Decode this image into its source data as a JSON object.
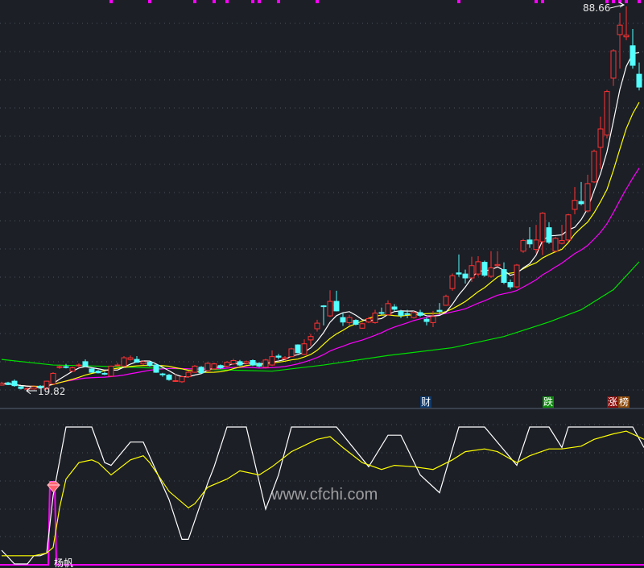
{
  "chart_data": [
    {
      "type": "candlestick",
      "title": "",
      "candle_fields": [
        "open",
        "high",
        "low",
        "close"
      ],
      "candles": [
        [
          20.8,
          21.4,
          20.7,
          21.1
        ],
        [
          21.2,
          21.4,
          20.8,
          20.9
        ],
        [
          21.5,
          21.8,
          20.5,
          20.7
        ],
        [
          20.5,
          20.6,
          20.0,
          20.2
        ],
        [
          20.1,
          20.4,
          19.82,
          20.2
        ],
        [
          20.1,
          20.6,
          20.0,
          20.5
        ],
        [
          20.6,
          20.8,
          20.2,
          20.3
        ],
        [
          20.1,
          21.6,
          20.0,
          21.5
        ],
        [
          21.0,
          23.1,
          20.9,
          22.9
        ],
        [
          24.0,
          24.5,
          23.7,
          24.1
        ],
        [
          24.1,
          24.6,
          23.8,
          24.0
        ],
        [
          23.3,
          24.1,
          23.2,
          23.9
        ],
        [
          24.3,
          24.7,
          24.0,
          24.4
        ],
        [
          25.0,
          25.4,
          24.1,
          24.2
        ],
        [
          23.7,
          23.9,
          23.0,
          23.1
        ],
        [
          23.3,
          23.5,
          22.9,
          23.0
        ],
        [
          22.9,
          23.2,
          22.6,
          22.8
        ],
        [
          22.4,
          24.3,
          22.3,
          24.2
        ],
        [
          24.3,
          24.8,
          24.0,
          24.4
        ],
        [
          24.2,
          26.0,
          24.0,
          25.7
        ],
        [
          25.4,
          26.1,
          25.2,
          25.7
        ],
        [
          25.4,
          26.0,
          24.8,
          24.9
        ],
        [
          24.6,
          25.2,
          24.4,
          25.0
        ],
        [
          24.9,
          25.1,
          24.1,
          24.3
        ],
        [
          24.4,
          24.6,
          23.0,
          23.1
        ],
        [
          22.8,
          23.0,
          22.3,
          22.7
        ],
        [
          22.6,
          22.8,
          21.6,
          21.8
        ],
        [
          21.5,
          22.8,
          21.4,
          21.6
        ],
        [
          21.4,
          22.5,
          21.2,
          22.3
        ],
        [
          22.3,
          23.3,
          22.1,
          23.1
        ],
        [
          23.1,
          24.4,
          23.0,
          24.2
        ],
        [
          24.0,
          24.2,
          22.8,
          23.0
        ],
        [
          23.4,
          24.9,
          23.2,
          24.7
        ],
        [
          23.7,
          24.8,
          23.5,
          24.6
        ],
        [
          24.3,
          24.5,
          23.7,
          23.9
        ],
        [
          24.2,
          25.1,
          24.0,
          24.9
        ],
        [
          24.6,
          25.5,
          24.4,
          25.2
        ],
        [
          25.0,
          25.3,
          24.2,
          24.4
        ],
        [
          24.7,
          25.2,
          24.5,
          25.0
        ],
        [
          25.2,
          25.4,
          24.2,
          24.4
        ],
        [
          24.7,
          24.9,
          24.0,
          24.2
        ],
        [
          24.0,
          25.5,
          23.8,
          25.3
        ],
        [
          24.4,
          27.0,
          24.2,
          25.9
        ],
        [
          26.0,
          26.4,
          25.4,
          25.8
        ],
        [
          25.5,
          26.0,
          25.3,
          25.7
        ],
        [
          25.9,
          27.5,
          25.8,
          27.3
        ],
        [
          28.0,
          28.1,
          26.5,
          26.6
        ],
        [
          26.3,
          29.0,
          26.2,
          28.2
        ],
        [
          28.9,
          30.0,
          27.8,
          29.5
        ],
        [
          30.9,
          32.5,
          30.4,
          31.9
        ],
        [
          35.0,
          35.1,
          31.5,
          34.9
        ],
        [
          33.2,
          37.8,
          33.0,
          35.8
        ],
        [
          35.8,
          37.7,
          34.0,
          34.1
        ],
        [
          32.9,
          33.7,
          31.4,
          32.1
        ],
        [
          32.0,
          33.4,
          31.5,
          32.9
        ],
        [
          32.4,
          32.6,
          31.5,
          31.7
        ],
        [
          31.0,
          32.0,
          30.9,
          31.8
        ],
        [
          32.1,
          33.0,
          31.9,
          32.7
        ],
        [
          32.0,
          34.3,
          31.8,
          33.7
        ],
        [
          33.8,
          34.7,
          33.4,
          33.7
        ],
        [
          33.4,
          36.0,
          33.3,
          35.4
        ],
        [
          34.8,
          35.3,
          34.1,
          34.4
        ],
        [
          34.0,
          34.3,
          32.8,
          33.3
        ],
        [
          33.6,
          34.3,
          32.8,
          33.5
        ],
        [
          32.9,
          34.1,
          32.7,
          33.8
        ],
        [
          33.8,
          34.3,
          33.0,
          33.3
        ],
        [
          32.6,
          32.9,
          31.5,
          32.2
        ],
        [
          32.0,
          34.1,
          31.2,
          33.1
        ],
        [
          34.2,
          35.5,
          33.5,
          34.0
        ],
        [
          35.1,
          37.0,
          35.0,
          36.7
        ],
        [
          38.1,
          40.8,
          37.7,
          40.4
        ],
        [
          40.9,
          44.2,
          40.2,
          40.7
        ],
        [
          40.7,
          41.5,
          39.0,
          40.0
        ],
        [
          40.0,
          43.8,
          39.3,
          42.2
        ],
        [
          40.7,
          43.9,
          40.3,
          42.9
        ],
        [
          42.8,
          43.1,
          40.2,
          40.5
        ],
        [
          40.3,
          44.8,
          40.0,
          41.8
        ],
        [
          42.2,
          44.8,
          42.0,
          42.4
        ],
        [
          41.5,
          42.8,
          38.9,
          39.2
        ],
        [
          39.2,
          39.7,
          38.0,
          38.4
        ],
        [
          38.4,
          42.5,
          38.2,
          42.3
        ],
        [
          44.8,
          47.0,
          44.5,
          46.7
        ],
        [
          46.8,
          49.1,
          45.4,
          46.1
        ],
        [
          45.1,
          49.5,
          44.4,
          46.8
        ],
        [
          46.5,
          51.8,
          44.1,
          51.6
        ],
        [
          49.0,
          50.0,
          46.1,
          46.4
        ],
        [
          44.8,
          47.4,
          44.5,
          47.1
        ],
        [
          46.2,
          49.5,
          46.0,
          46.7
        ],
        [
          46.8,
          51.5,
          46.5,
          51.3
        ],
        [
          52.3,
          56.3,
          51.4,
          53.9
        ],
        [
          53.7,
          57.2,
          53.0,
          53.3
        ],
        [
          52.0,
          58.5,
          51.7,
          56.9
        ],
        [
          57.2,
          63.0,
          57.0,
          62.7
        ],
        [
          63.4,
          68.9,
          59.5,
          66.7
        ],
        [
          65.6,
          73.7,
          65.0,
          73.4
        ],
        [
          75.8,
          81.0,
          74.4,
          80.7
        ],
        [
          83.6,
          87.5,
          77.5,
          85.3
        ],
        [
          83.2,
          88.66,
          82.6,
          83.5
        ],
        [
          81.6,
          84.6,
          77.5,
          78.1
        ],
        [
          76.5,
          78.6,
          73.6,
          74.2
        ]
      ],
      "moving_averages": [
        {
          "period": 5,
          "color": "#ffffff"
        },
        {
          "period": 10,
          "color": "#ffff00"
        },
        {
          "period": 20,
          "color": "#ff00ff"
        }
      ],
      "long_ma": {
        "color": "#00e000",
        "points": [
          [
            0,
            25.4
          ],
          [
            8,
            24.4
          ],
          [
            15,
            24.2
          ],
          [
            25,
            23.8
          ],
          [
            35,
            23.5
          ],
          [
            42,
            23.3
          ],
          [
            50,
            24.4
          ],
          [
            60,
            26.1
          ],
          [
            70,
            27.5
          ],
          [
            78,
            29.5
          ],
          [
            85,
            32.1
          ],
          [
            90,
            34.3
          ],
          [
            95,
            37.9
          ],
          [
            99,
            42.9
          ]
        ]
      },
      "price_range": [
        16.9,
        89.8
      ],
      "up_color": "#ff3232",
      "down_color": "#54ffff",
      "high_label": "88.66",
      "low_label": "19.82",
      "signal_marker_indices": [
        17,
        23,
        30,
        33,
        35,
        39,
        40,
        43,
        49,
        71,
        83,
        84,
        94,
        95,
        96,
        97,
        99
      ],
      "signal_marker_color": "#ff00ff",
      "event_tags": [
        {
          "text": "财",
          "bg": "#0d3a6e",
          "color": "#ffffff"
        },
        {
          "text": "跌",
          "bg": "#0b8a0b",
          "color": "#ffffff"
        },
        {
          "text": "涨",
          "bg": "#8a0c0c",
          "color": "#ffffff"
        },
        {
          "text": "榜",
          "bg": "#8a4a0c",
          "color": "#ffffff"
        }
      ]
    },
    {
      "type": "line",
      "title": "",
      "y_range": [
        0,
        100
      ],
      "series": [
        {
          "color": "#ffffff",
          "points": [
            [
              0,
              10
            ],
            [
              1,
              5
            ],
            [
              2,
              0
            ],
            [
              4,
              0
            ],
            [
              5,
              6
            ],
            [
              6,
              6
            ],
            [
              7,
              8
            ],
            [
              8,
              50
            ],
            [
              10,
              100
            ],
            [
              14,
              100
            ],
            [
              16,
              74
            ],
            [
              17,
              72
            ],
            [
              20,
              89
            ],
            [
              22,
              89
            ],
            [
              26,
              47
            ],
            [
              28,
              18
            ],
            [
              29,
              18
            ],
            [
              32,
              59
            ],
            [
              33,
              71
            ],
            [
              35,
              100
            ],
            [
              38,
              100
            ],
            [
              41,
              40
            ],
            [
              43,
              65
            ],
            [
              45,
              100
            ],
            [
              52,
              100
            ],
            [
              57,
              71
            ],
            [
              60,
              94
            ],
            [
              62,
              94
            ],
            [
              65,
              65
            ],
            [
              68,
              52
            ],
            [
              71,
              100
            ],
            [
              75,
              100
            ],
            [
              80,
              72
            ],
            [
              82,
              100
            ],
            [
              85,
              100
            ],
            [
              87,
              85
            ],
            [
              88,
              100
            ],
            [
              98,
              100
            ],
            [
              99.75,
              85
            ]
          ]
        },
        {
          "color": "#ffff00",
          "points": [
            [
              0,
              6
            ],
            [
              5,
              6
            ],
            [
              7,
              8
            ],
            [
              8,
              12
            ],
            [
              9,
              41
            ],
            [
              10,
              62
            ],
            [
              12,
              74
            ],
            [
              14,
              76
            ],
            [
              15,
              74
            ],
            [
              17,
              65
            ],
            [
              20,
              76
            ],
            [
              22,
              79
            ],
            [
              23,
              74
            ],
            [
              26,
              53
            ],
            [
              29,
              41
            ],
            [
              30,
              44
            ],
            [
              32,
              56
            ],
            [
              35,
              62
            ],
            [
              37,
              68
            ],
            [
              40,
              65
            ],
            [
              42,
              71
            ],
            [
              45,
              82
            ],
            [
              49,
              91
            ],
            [
              51,
              93
            ],
            [
              53,
              85
            ],
            [
              56,
              74
            ],
            [
              59,
              69
            ],
            [
              61,
              72
            ],
            [
              64,
              71
            ],
            [
              67,
              69
            ],
            [
              70,
              76
            ],
            [
              72,
              82
            ],
            [
              75,
              84
            ],
            [
              77,
              82
            ],
            [
              80,
              74
            ],
            [
              82,
              79
            ],
            [
              85,
              84
            ],
            [
              87,
              84
            ],
            [
              90,
              86
            ],
            [
              92,
              91
            ],
            [
              95,
              95
            ],
            [
              97,
              97
            ],
            [
              99.75,
              91
            ]
          ]
        }
      ],
      "spike": {
        "index": 8,
        "value": 60,
        "color": "#ff00ff"
      },
      "spike_label": "杨帆"
    }
  ],
  "watermark": "www.cfchi.com"
}
